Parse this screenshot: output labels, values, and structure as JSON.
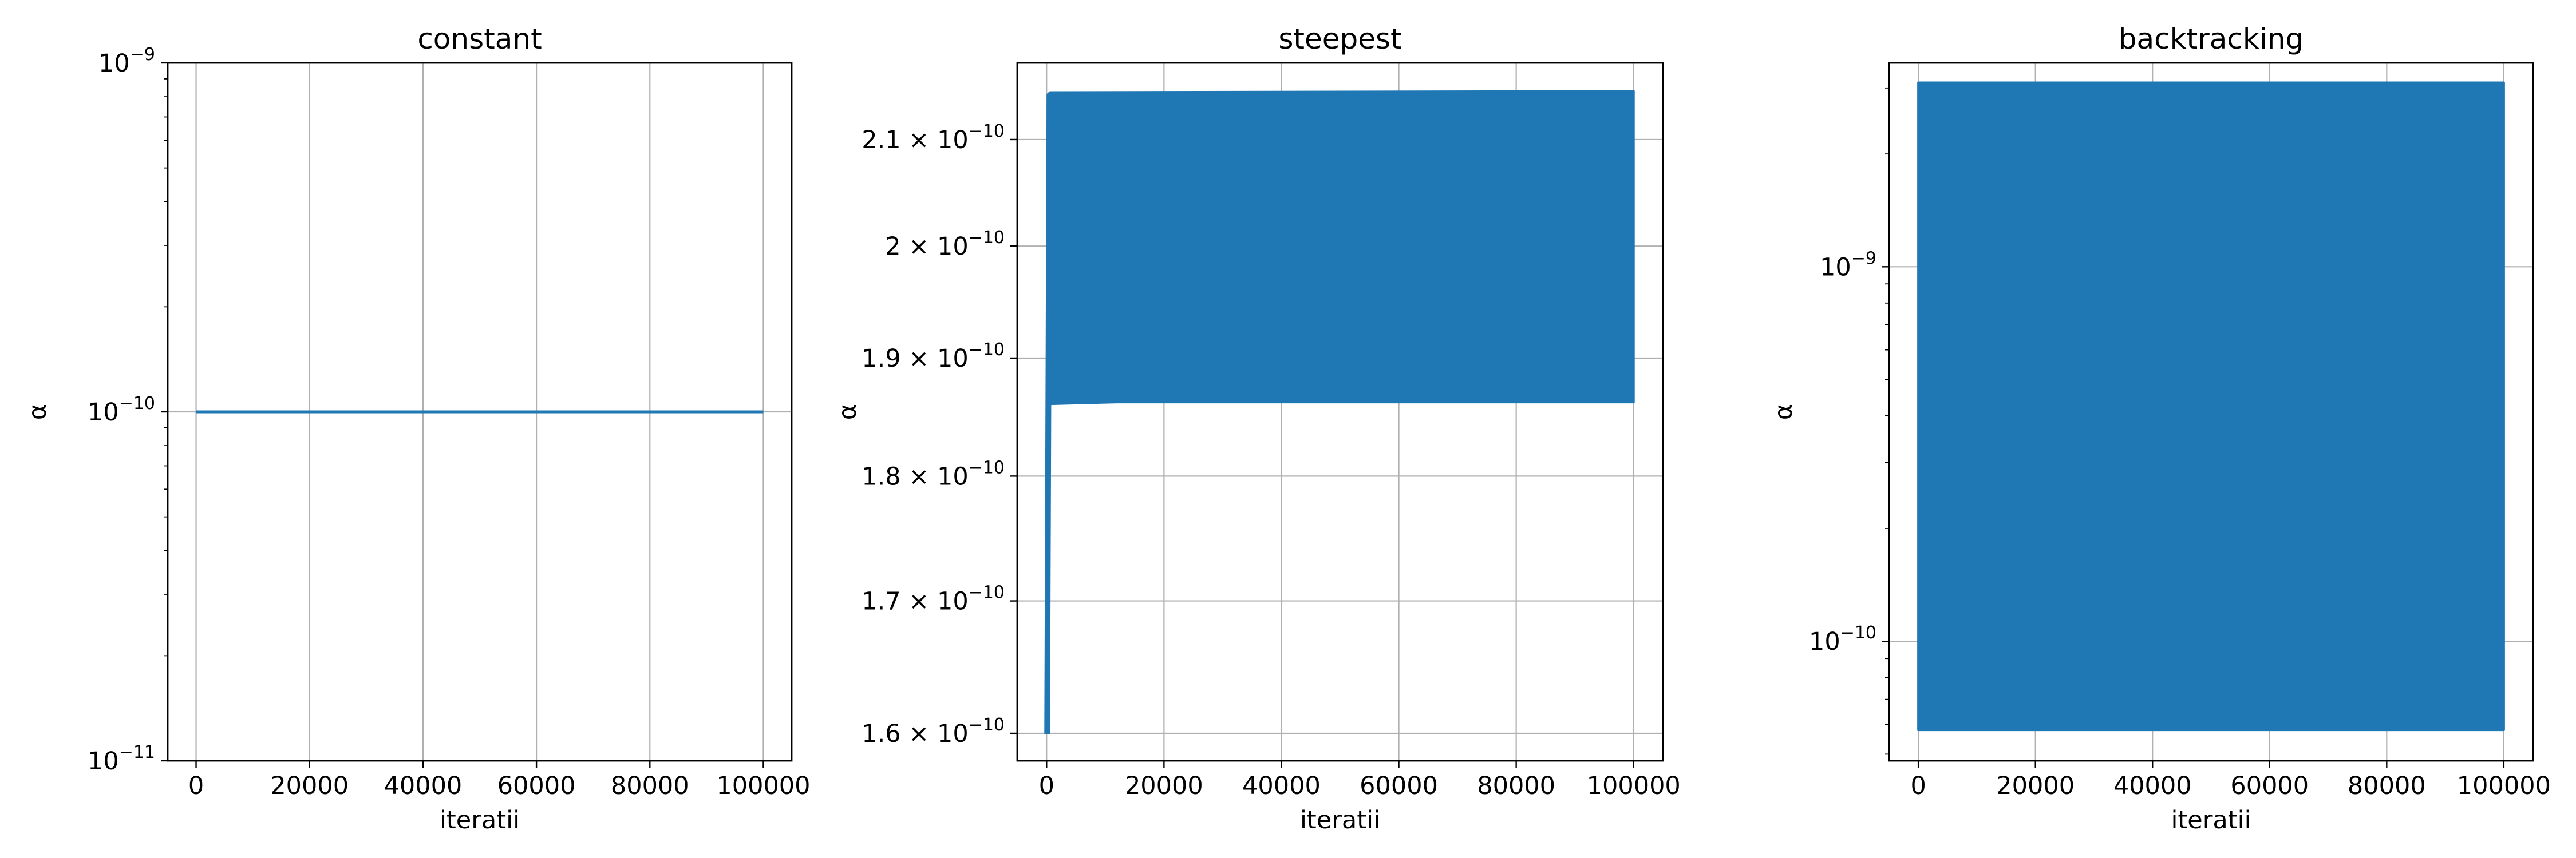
{
  "chart_data": [
    {
      "type": "line",
      "title": "constant",
      "xlabel": "iteratii",
      "ylabel": "α",
      "yscale": "log",
      "xlim": [
        -5000,
        105000
      ],
      "ylim": [
        1e-11,
        1e-09
      ],
      "grid": true,
      "color": "#1f77b4",
      "x_ticks": [
        0,
        20000,
        40000,
        60000,
        80000,
        100000
      ],
      "x_tick_labels": [
        "0",
        "20000",
        "40000",
        "60000",
        "80000",
        "100000"
      ],
      "y_major_ticks": [
        1e-11,
        1e-10,
        1e-09
      ],
      "y_tick_labels": [
        {
          "base": "10",
          "exp": "−11"
        },
        {
          "base": "10",
          "exp": "−10"
        },
        {
          "base": "10",
          "exp": "−9"
        }
      ],
      "series": [
        {
          "kind": "line",
          "x": [
            0,
            100000
          ],
          "y": [
            1e-10,
            1e-10
          ]
        }
      ]
    },
    {
      "type": "line",
      "title": "steepest",
      "xlabel": "iteratii",
      "ylabel": "α",
      "yscale": "log",
      "xlim": [
        -5000,
        105000
      ],
      "ylim": [
        1.58e-10,
        2.175e-10
      ],
      "grid": true,
      "color": "#1f77b4",
      "x_ticks": [
        0,
        20000,
        40000,
        60000,
        80000,
        100000
      ],
      "x_tick_labels": [
        "0",
        "20000",
        "40000",
        "60000",
        "80000",
        "100000"
      ],
      "y_major_ticks": [
        1.6e-10,
        1.7e-10,
        1.8e-10,
        1.9e-10,
        2e-10,
        2.1e-10
      ],
      "y_tick_labels": [
        {
          "base": "1.6 × 10",
          "exp": "−10"
        },
        {
          "base": "1.7 × 10",
          "exp": "−10"
        },
        {
          "base": "1.8 × 10",
          "exp": "−10"
        },
        {
          "base": "1.9 × 10",
          "exp": "−10"
        },
        {
          "base": "2 × 10",
          "exp": "−10"
        },
        {
          "base": "2.1 × 10",
          "exp": "−10"
        }
      ],
      "series": [
        {
          "kind": "oscillation_band",
          "start_x": 0,
          "start_y": 1.6e-10,
          "transient_end_x": 600,
          "settle_x": 12000,
          "end_x": 100000,
          "band_low": 1.862e-10,
          "band_high": 2.147e-10
        }
      ]
    },
    {
      "type": "line",
      "title": "backtracking",
      "xlabel": "iteratii",
      "ylabel": "α",
      "yscale": "log",
      "xlim": [
        -5000,
        105000
      ],
      "ylim": [
        4.8e-11,
        3.5e-09
      ],
      "grid": true,
      "color": "#1f77b4",
      "x_ticks": [
        0,
        20000,
        40000,
        60000,
        80000,
        100000
      ],
      "x_tick_labels": [
        "0",
        "20000",
        "40000",
        "60000",
        "80000",
        "100000"
      ],
      "y_major_ticks": [
        1e-10,
        1e-09
      ],
      "y_tick_labels": [
        {
          "base": "10",
          "exp": "−10"
        },
        {
          "base": "10",
          "exp": "−9"
        }
      ],
      "series": [
        {
          "kind": "oscillation_band",
          "start_x": 0,
          "settle_x": 0,
          "end_x": 100000,
          "band_low": 5.8e-11,
          "band_high": 3.1e-09
        }
      ]
    }
  ]
}
